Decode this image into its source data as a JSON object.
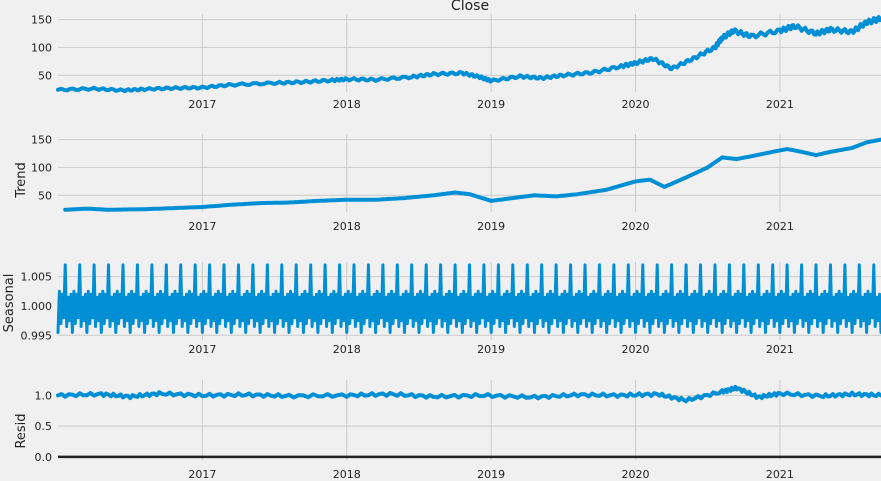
{
  "chart_data": [
    {
      "type": "line",
      "title": "Close",
      "ylabel": "",
      "xlim": [
        2016.0,
        2021.7
      ],
      "ylim": [
        20,
        160
      ],
      "yticks": [
        50,
        100,
        150
      ],
      "xticks": [
        "2017",
        "2018",
        "2019",
        "2020",
        "2021"
      ],
      "grid": true,
      "series": [
        {
          "x": [
            2016.0,
            2016.25,
            2016.45,
            2016.6,
            2016.8,
            2017.0,
            2017.2,
            2017.5,
            2017.7,
            2017.9,
            2018.0,
            2018.2,
            2018.45,
            2018.6,
            2018.8,
            2018.92,
            2019.0,
            2019.2,
            2019.35,
            2019.5,
            2019.7,
            2019.9,
            2020.0,
            2020.12,
            2020.25,
            2020.4,
            2020.55,
            2020.6,
            2020.68,
            2020.8,
            2021.0,
            2021.1,
            2021.25,
            2021.35,
            2021.5,
            2021.6,
            2021.7
          ],
          "y": [
            24,
            26,
            23,
            25,
            27,
            28,
            33,
            36,
            38,
            41,
            43,
            42,
            47,
            52,
            54,
            47,
            40,
            48,
            45,
            50,
            55,
            66,
            72,
            80,
            62,
            80,
            100,
            117,
            130,
            120,
            130,
            138,
            125,
            132,
            128,
            145,
            152
          ]
        }
      ]
    },
    {
      "type": "line",
      "title": "",
      "ylabel": "Trend",
      "xlim": [
        2016.0,
        2021.7
      ],
      "ylim": [
        20,
        160
      ],
      "yticks": [
        50,
        100,
        150
      ],
      "xticks": [
        "2017",
        "2018",
        "2019",
        "2020",
        "2021"
      ],
      "grid": true,
      "series": [
        {
          "x": [
            2016.05,
            2016.2,
            2016.35,
            2016.6,
            2016.8,
            2017.0,
            2017.2,
            2017.4,
            2017.6,
            2017.8,
            2018.0,
            2018.2,
            2018.4,
            2018.6,
            2018.75,
            2018.85,
            2019.0,
            2019.15,
            2019.3,
            2019.45,
            2019.6,
            2019.8,
            2020.0,
            2020.1,
            2020.2,
            2020.35,
            2020.5,
            2020.6,
            2020.7,
            2020.8,
            2020.95,
            2021.05,
            2021.15,
            2021.25,
            2021.35,
            2021.5,
            2021.6,
            2021.7
          ],
          "y": [
            24,
            26,
            24,
            25,
            27,
            29,
            33,
            36,
            37,
            40,
            42,
            42,
            45,
            50,
            55,
            52,
            40,
            45,
            50,
            48,
            52,
            60,
            75,
            78,
            65,
            82,
            100,
            118,
            115,
            120,
            128,
            133,
            128,
            122,
            128,
            135,
            145,
            150
          ]
        }
      ]
    },
    {
      "type": "line",
      "title": "",
      "ylabel": "Seasonal",
      "xlim": [
        2016.0,
        2021.7
      ],
      "ylim": [
        0.9942,
        1.0075
      ],
      "yticks": [
        0.995,
        1.0,
        1.005
      ],
      "ytick_labels": [
        "0.995",
        "1.000",
        "1.005"
      ],
      "xticks": [
        "2017",
        "2018",
        "2019",
        "2020",
        "2021"
      ],
      "grid": true,
      "period_years": 0.1,
      "series": [
        {
          "x": [
            0,
            0.1,
            0.2,
            0.3,
            0.4,
            0.5,
            0.6,
            0.7,
            0.8,
            0.9
          ],
          "y": [
            0.9955,
            1.0025,
            0.997,
            1.002,
            0.998,
            1.007,
            0.9965,
            1.0015,
            0.9975,
            1.002
          ]
        }
      ]
    },
    {
      "type": "line",
      "title": "",
      "ylabel": "Resid",
      "xlim": [
        2016.0,
        2021.7
      ],
      "ylim": [
        -0.05,
        1.25
      ],
      "yticks": [
        0.0,
        0.5,
        1.0
      ],
      "ytick_labels": [
        "0.0",
        "0.5",
        "1.0"
      ],
      "xticks": [
        "2017",
        "2018",
        "2019",
        "2020",
        "2021"
      ],
      "grid": true,
      "baseline": 0.0,
      "series": [
        {
          "x": [
            2016.0,
            2016.3,
            2016.5,
            2016.7,
            2017.0,
            2017.3,
            2017.6,
            2018.0,
            2018.3,
            2018.6,
            2018.95,
            2019.3,
            2019.6,
            2019.9,
            2020.15,
            2020.35,
            2020.6,
            2020.7,
            2020.85,
            2021.0,
            2021.3,
            2021.5,
            2021.7
          ],
          "y": [
            1.0,
            1.02,
            0.98,
            1.03,
            1.0,
            1.01,
            0.99,
            1.0,
            1.02,
            0.98,
            1.0,
            0.97,
            1.01,
            1.0,
            1.02,
            0.92,
            1.06,
            1.12,
            0.97,
            1.03,
            0.99,
            1.02,
            1.0
          ]
        }
      ]
    }
  ]
}
